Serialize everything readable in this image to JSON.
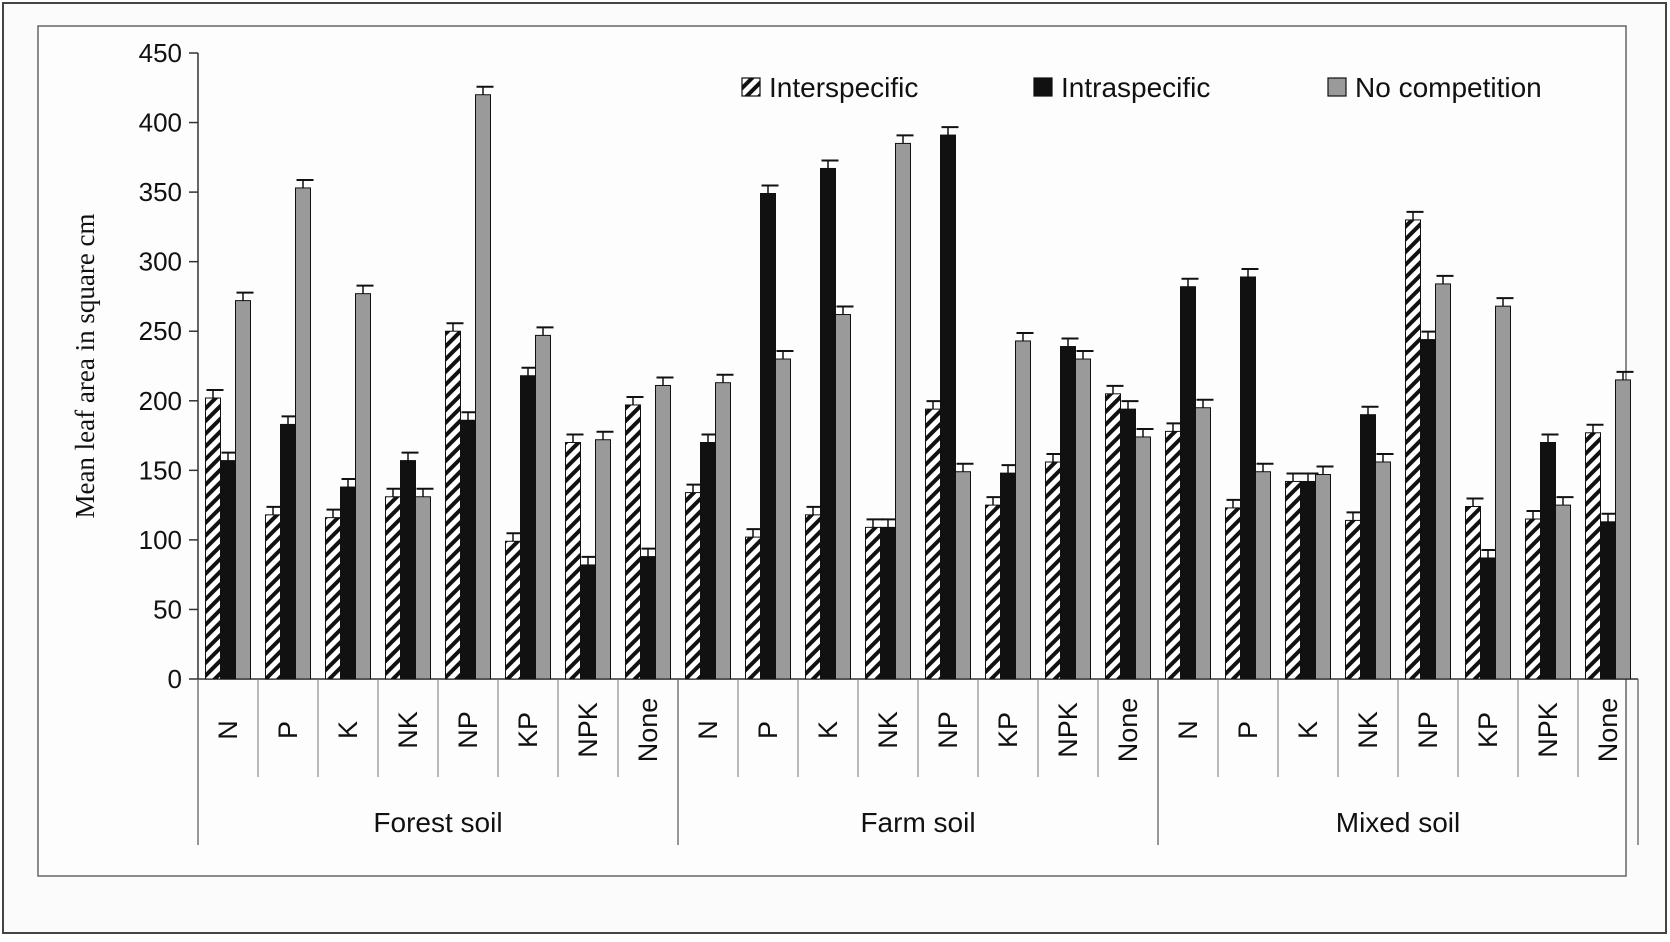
{
  "chart_data": {
    "type": "bar",
    "ylabel": "Mean leaf area in square cm",
    "ylim": [
      0,
      450
    ],
    "yticks": [
      0,
      50,
      100,
      150,
      200,
      250,
      300,
      350,
      400,
      450
    ],
    "grid": false,
    "legend_position": "top-right",
    "groups": [
      "Forest soil",
      "Farm soil",
      "Mixed soil"
    ],
    "categories": [
      "N",
      "P",
      "K",
      "NK",
      "NP",
      "KP",
      "NPK",
      "None"
    ],
    "series": [
      {
        "name": "Interspecific",
        "pattern": "hatched",
        "values": [
          [
            202,
            118,
            116,
            131,
            250,
            99,
            170,
            197
          ],
          [
            134,
            102,
            118,
            109,
            194,
            125,
            156,
            205
          ],
          [
            178,
            123,
            142,
            114,
            330,
            124,
            115,
            177
          ]
        ]
      },
      {
        "name": "Intraspecific",
        "color": "#111111",
        "values": [
          [
            157,
            183,
            138,
            157,
            186,
            218,
            82,
            88
          ],
          [
            170,
            349,
            367,
            109,
            391,
            148,
            239,
            194
          ],
          [
            282,
            289,
            142,
            190,
            244,
            87,
            170,
            113
          ]
        ]
      },
      {
        "name": "No competition",
        "color": "#9a9a9a",
        "values": [
          [
            272,
            353,
            277,
            131,
            420,
            247,
            172,
            211
          ],
          [
            213,
            230,
            262,
            385,
            149,
            243,
            230,
            174
          ],
          [
            195,
            149,
            147,
            156,
            284,
            268,
            125,
            215
          ]
        ]
      }
    ]
  }
}
